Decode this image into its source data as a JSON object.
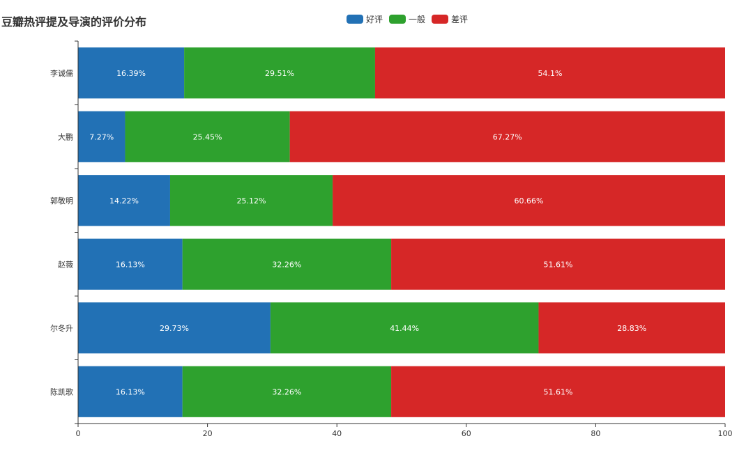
{
  "chart_data": {
    "type": "bar",
    "orientation": "horizontal",
    "stacked": true,
    "title": "豆瓣热评提及导演的评价分布",
    "categories": [
      "李诚儒",
      "大鹏",
      "郭敬明",
      "赵薇",
      "尔冬升",
      "陈凯歌"
    ],
    "series": [
      {
        "name": "好评",
        "color": "#2271b5",
        "values": [
          16.39,
          7.27,
          14.22,
          16.13,
          29.73,
          16.13
        ],
        "labels": [
          "16.39%",
          "7.27%",
          "14.22%",
          "16.13%",
          "29.73%",
          "16.13%"
        ]
      },
      {
        "name": "一般",
        "color": "#2ea12e",
        "values": [
          29.51,
          25.45,
          25.12,
          32.26,
          41.44,
          32.26
        ],
        "labels": [
          "29.51%",
          "25.45%",
          "25.12%",
          "32.26%",
          "41.44%",
          "32.26%"
        ]
      },
      {
        "name": "差评",
        "color": "#d62727",
        "values": [
          54.1,
          67.27,
          60.66,
          51.61,
          28.83,
          51.61
        ],
        "labels": [
          "54.1%",
          "67.27%",
          "60.66%",
          "51.61%",
          "28.83%",
          "51.61%"
        ]
      }
    ],
    "xlim": [
      0,
      100
    ],
    "xticks": [
      0,
      20,
      40,
      60,
      80,
      100
    ],
    "xtick_labels": [
      "0",
      "20",
      "40",
      "60",
      "80",
      "100"
    ],
    "xlabel": "",
    "ylabel": "",
    "legend": "top-center",
    "grid": false
  }
}
